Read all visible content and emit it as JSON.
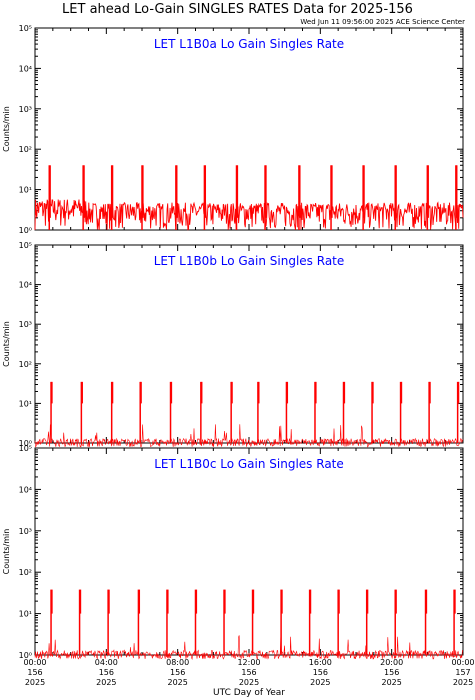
{
  "title": "LET ahead Lo-Gain SINGLES RATES Data for 2025-156",
  "timestamp": "Wed Jun 11 09:56:00 2025 ACE Science Center",
  "colors": {
    "data": "#ff0000",
    "panel_title": "#0000ff",
    "frame": "#000000"
  },
  "chart_data": [
    {
      "type": "line",
      "title": "LET L1B0a Lo Gain Singles Rate",
      "ylabel": "Counts/min",
      "yscale": "log",
      "ylim": [
        1,
        100000
      ],
      "ytick_labels": [
        "10⁰",
        "10¹",
        "10²",
        "10³",
        "10⁴",
        "10⁵"
      ],
      "xlim_hours": [
        0,
        24
      ],
      "baseline_range": [
        1,
        6
      ],
      "spike_hours": [
        0.8,
        2.7,
        4.3,
        6.0,
        7.9,
        9.5,
        11.3,
        12.9,
        14.8,
        16.6,
        18.4,
        20.2,
        22.0,
        23.6
      ],
      "spike_peak": 40
    },
    {
      "type": "line",
      "title": "LET L1B0b Lo Gain Singles Rate",
      "ylabel": "Counts/min",
      "yscale": "log",
      "ylim": [
        1,
        100000
      ],
      "ytick_labels": [
        "10⁰",
        "10¹",
        "10²",
        "10³",
        "10⁴",
        "10⁵"
      ],
      "xlim_hours": [
        0,
        24
      ],
      "baseline_range": [
        0.8,
        1.3
      ],
      "spike_hours": [
        0.9,
        2.6,
        4.3,
        5.9,
        7.6,
        9.3,
        11.0,
        12.5,
        14.1,
        15.7,
        17.3,
        18.9,
        20.5,
        22.1,
        23.7
      ],
      "spike_peak": 35
    },
    {
      "type": "line",
      "title": "LET L1B0c Lo Gain Singles Rate",
      "ylabel": "Counts/min",
      "yscale": "log",
      "ylim": [
        1,
        100000
      ],
      "ytick_labels": [
        "10⁰",
        "10¹",
        "10²",
        "10³",
        "10⁴",
        "10⁵"
      ],
      "xlim_hours": [
        0,
        24
      ],
      "baseline_range": [
        0.8,
        1.3
      ],
      "spike_hours": [
        0.9,
        2.5,
        4.1,
        5.8,
        7.4,
        9.0,
        10.6,
        12.2,
        13.8,
        15.4,
        17.0,
        18.6,
        20.2,
        21.9,
        23.5
      ],
      "spike_peak": 38
    }
  ],
  "x_axis": {
    "label": "UTC Day of Year",
    "ticks": [
      {
        "hour": 0,
        "lines": [
          "00:00",
          "156",
          "2025"
        ]
      },
      {
        "hour": 4,
        "lines": [
          "04:00",
          "156",
          "2025"
        ]
      },
      {
        "hour": 8,
        "lines": [
          "08:00",
          "156",
          "2025"
        ]
      },
      {
        "hour": 12,
        "lines": [
          "12:00",
          "156",
          "2025"
        ]
      },
      {
        "hour": 16,
        "lines": [
          "16:00",
          "156",
          "2025"
        ]
      },
      {
        "hour": 20,
        "lines": [
          "20:00",
          "156",
          "2025"
        ]
      },
      {
        "hour": 24,
        "lines": [
          "00:00",
          "157",
          "2025"
        ]
      }
    ]
  }
}
